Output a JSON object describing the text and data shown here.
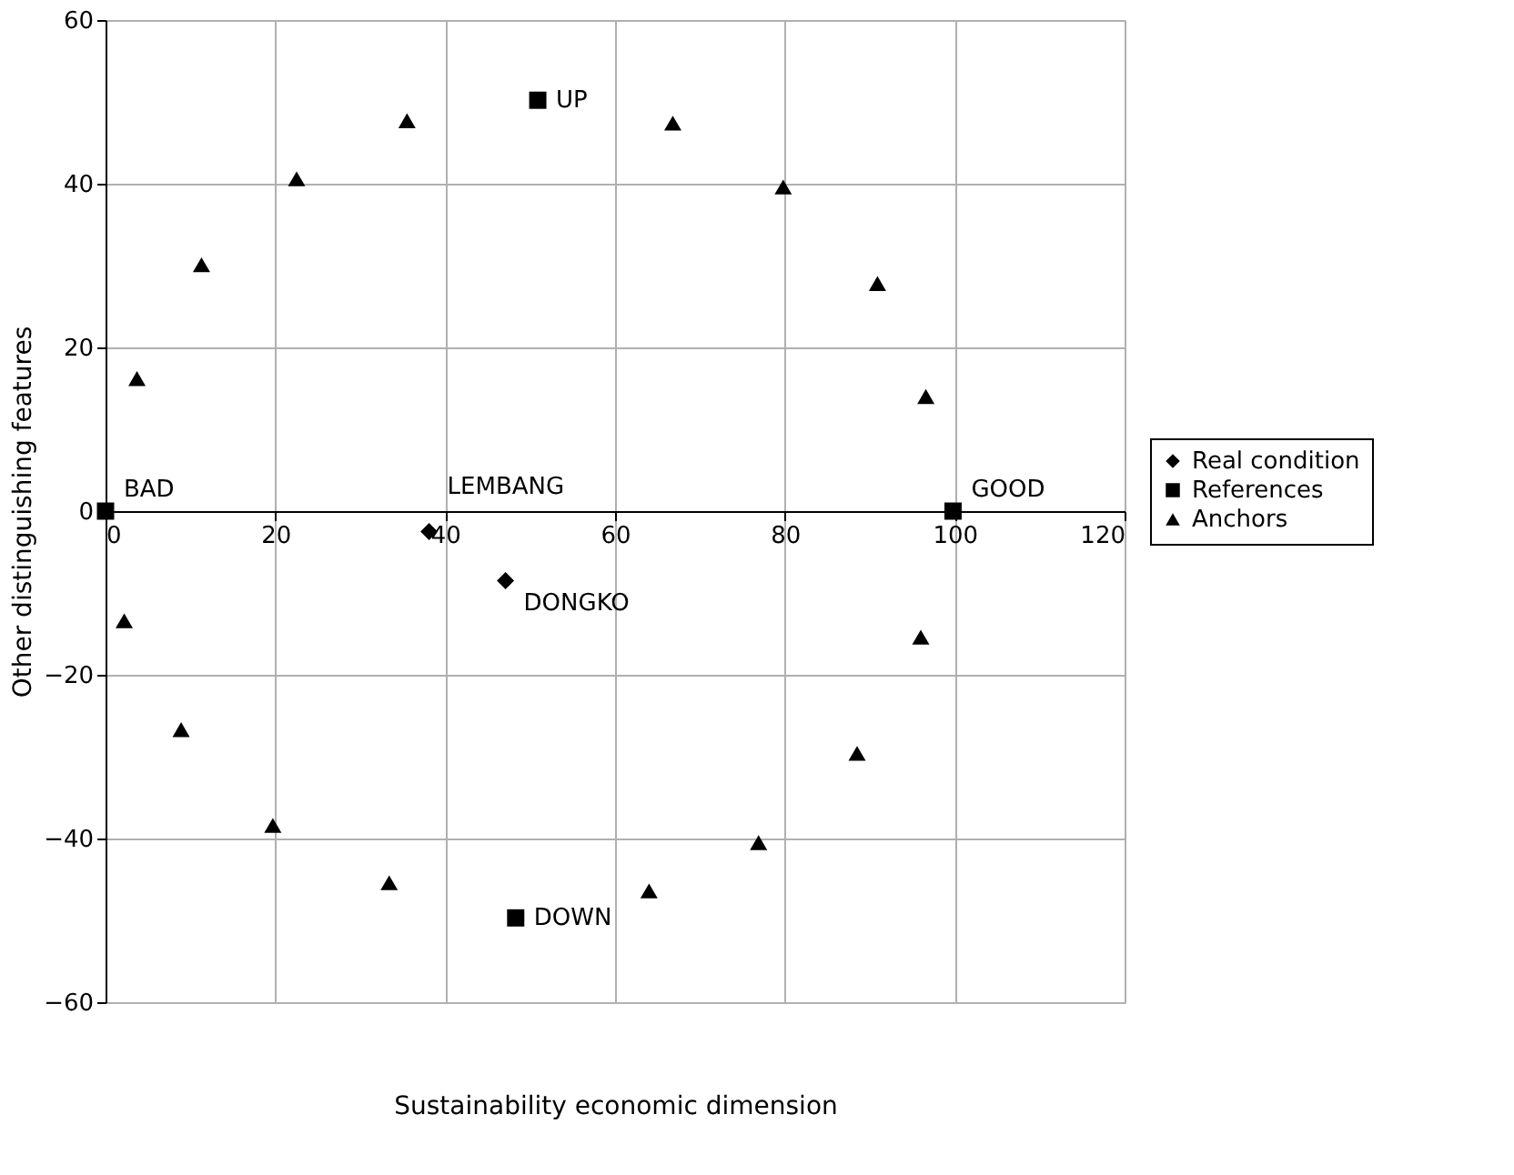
{
  "chart_data": {
    "type": "scatter",
    "xlabel": "Sustainability economic dimension",
    "ylabel": "Other distinguishing features",
    "xlim": [
      0,
      120
    ],
    "xticks": [
      0,
      20,
      40,
      60,
      80,
      100,
      120
    ],
    "ylim": [
      -60,
      60
    ],
    "yticks": [
      -60,
      -40,
      -20,
      0,
      20,
      40,
      60
    ],
    "grid": true,
    "legend": "right",
    "series": [
      {
        "name": "Real condition",
        "color": "#000000",
        "marker": "diamond",
        "x": [
          38.1,
          47.1
        ],
        "values": [
          -2.5,
          -8.5
        ]
      },
      {
        "name": "References",
        "color": "#000000",
        "marker": "square",
        "x": [
          0,
          50.9,
          99.8,
          48.3
        ],
        "values": [
          0,
          50.2,
          0,
          -49.7
        ]
      },
      {
        "name": "Anchors",
        "color": "#000000",
        "marker": "triangle",
        "x": [
          3.7,
          11.3,
          22.5,
          35.5,
          66.8,
          79.8,
          90.9,
          96.6,
          2.2,
          8.9,
          19.7,
          33.4,
          64.0,
          76.9,
          88.5,
          96.0
        ],
        "values": [
          16.2,
          30.1,
          40.6,
          47.7,
          47.4,
          39.6,
          27.8,
          14.0,
          -13.4,
          -26.7,
          -38.4,
          -45.4,
          -46.4,
          -40.5,
          -29.6,
          -15.4
        ]
      }
    ],
    "annotations": [
      {
        "text": "BAD",
        "x": 0,
        "y": 0
      },
      {
        "text": "UP",
        "x": 50.9,
        "y": 50.2
      },
      {
        "text": "GOOD",
        "x": 99.8,
        "y": 0
      },
      {
        "text": "DOWN",
        "x": 48.3,
        "y": -49.7
      },
      {
        "text": "LEMBANG",
        "x": 38.1,
        "y": -2.5
      },
      {
        "text": "DONGKO",
        "x": 47.1,
        "y": -8.5
      }
    ]
  }
}
